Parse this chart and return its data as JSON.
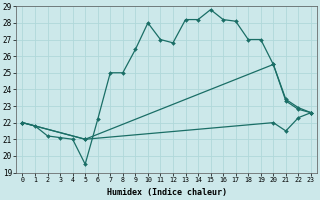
{
  "xlabel": "Humidex (Indice chaleur)",
  "xlim": [
    -0.5,
    23.5
  ],
  "ylim": [
    19,
    29
  ],
  "yticks": [
    19,
    20,
    21,
    22,
    23,
    24,
    25,
    26,
    27,
    28,
    29
  ],
  "xticks": [
    0,
    1,
    2,
    3,
    4,
    5,
    6,
    7,
    8,
    9,
    10,
    11,
    12,
    13,
    14,
    15,
    16,
    17,
    18,
    19,
    20,
    21,
    22,
    23
  ],
  "line_color": "#1a6e66",
  "bg_color": "#cce8ea",
  "grid_color": "#b0d8da",
  "lines": [
    {
      "x": [
        0,
        1,
        2,
        3,
        4,
        5,
        6,
        7,
        8,
        9,
        10,
        11,
        12,
        13,
        14,
        15,
        16,
        17,
        18,
        19,
        20,
        21,
        22,
        23
      ],
      "y": [
        22,
        21.8,
        21.2,
        21.1,
        21.0,
        19.5,
        22.2,
        25.0,
        25.0,
        26.4,
        28.0,
        27.0,
        26.8,
        28.2,
        28.2,
        28.8,
        28.2,
        28.1,
        27.0,
        27.0,
        25.5,
        23.4,
        22.9,
        22.6
      ]
    },
    {
      "x": [
        0,
        5,
        20,
        21,
        22,
        23
      ],
      "y": [
        22,
        21.0,
        25.5,
        23.3,
        22.8,
        22.6
      ]
    },
    {
      "x": [
        0,
        5,
        20,
        21,
        22,
        23
      ],
      "y": [
        22,
        21.0,
        22.0,
        21.5,
        22.3,
        22.6
      ]
    }
  ]
}
